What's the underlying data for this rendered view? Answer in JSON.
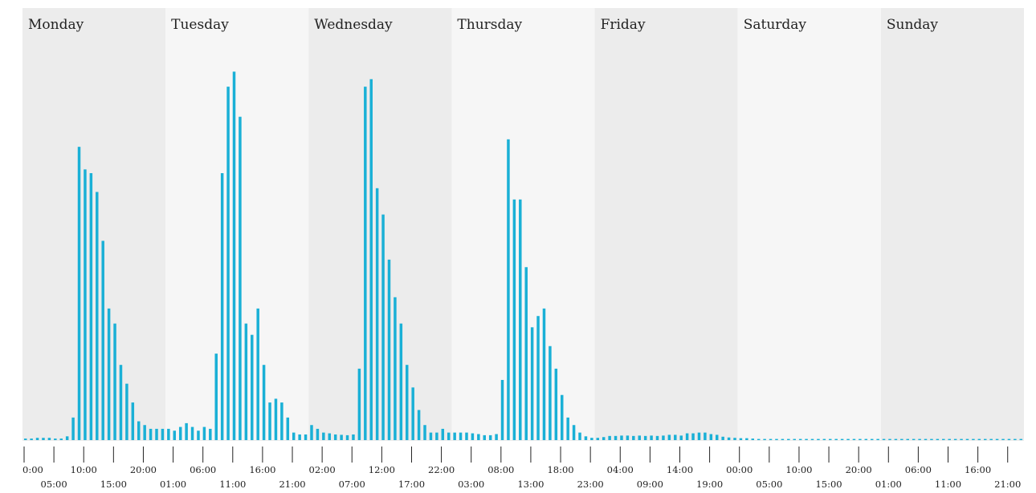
{
  "colors": {
    "bar": "#1ab0d6",
    "band_dark": "#ececec",
    "band_light": "#f6f6f6",
    "axis": "#222222"
  },
  "chart_data": {
    "type": "bar",
    "title": "",
    "xlabel": "",
    "ylabel": "",
    "grid": false,
    "ylim": [
      0,
      100
    ],
    "days": [
      "Monday",
      "Tuesday",
      "Wednesday",
      "Thursday",
      "Friday",
      "Saturday",
      "Sunday"
    ],
    "hours_per_bar": 1,
    "tick_interval_hours": 5,
    "tick_labels": [
      "0:00",
      "05:00",
      "10:00",
      "15:00",
      "20:00",
      "01:00",
      "06:00",
      "11:00",
      "16:00",
      "21:00",
      "02:00",
      "07:00",
      "12:00",
      "17:00",
      "22:00",
      "03:00",
      "08:00",
      "13:00",
      "18:00",
      "23:00",
      "04:00",
      "09:00",
      "14:00",
      "19:00",
      "00:00",
      "05:00",
      "10:00",
      "15:00",
      "20:00",
      "01:00",
      "06:00",
      "11:00",
      "16:00",
      "21:00"
    ],
    "series": [
      {
        "values": [
          0.4,
          0.4,
          0.6,
          0.6,
          0.6,
          0.4,
          0.4,
          1,
          6,
          78,
          72,
          71,
          66,
          53,
          35,
          31,
          20,
          15,
          10,
          5,
          4,
          3,
          3,
          3,
          3,
          2.5,
          3.5,
          4.5,
          3.5,
          2.5,
          3.5,
          3,
          23,
          71,
          94,
          98,
          86,
          31,
          28,
          35,
          20,
          10,
          11,
          10,
          6,
          2,
          1.5,
          1.5,
          4,
          3,
          2,
          1.8,
          1.5,
          1.4,
          1.3,
          1.5,
          19,
          94,
          96,
          67,
          60,
          48,
          38,
          31,
          20,
          14,
          8,
          4,
          2,
          2,
          3,
          2,
          2,
          2,
          2,
          1.8,
          1.6,
          1.3,
          1.3,
          1.6,
          16,
          80,
          64,
          64,
          46,
          30,
          33,
          35,
          25,
          19,
          12,
          6,
          4,
          2,
          1,
          0.6,
          0.6,
          0.8,
          1.1,
          1.1,
          1.2,
          1.2,
          1.1,
          1.2,
          1.1,
          1.2,
          1.1,
          1.2,
          1.4,
          1.4,
          1.2,
          1.8,
          1.8,
          2,
          2,
          1.6,
          1.4,
          0.9,
          0.7,
          0.6,
          0.5,
          0.5,
          0.4,
          0.3,
          0.3,
          0.3,
          0.3,
          0.3,
          0.3,
          0.3,
          0.3,
          0.3,
          0.3,
          0.3,
          0.3,
          0.3,
          0.3,
          0.3,
          0.3,
          0.3,
          0.3,
          0.3,
          0.3,
          0.3,
          0.3,
          0.3,
          0.3,
          0.3,
          0.3,
          0.3,
          0.3,
          0.3,
          0.3,
          0.3,
          0.3,
          0.3,
          0.3,
          0.3,
          0.3,
          0.3,
          0.3,
          0.3,
          0.3,
          0.3,
          0.3,
          0.3,
          0.3,
          0.3
        ]
      }
    ]
  }
}
